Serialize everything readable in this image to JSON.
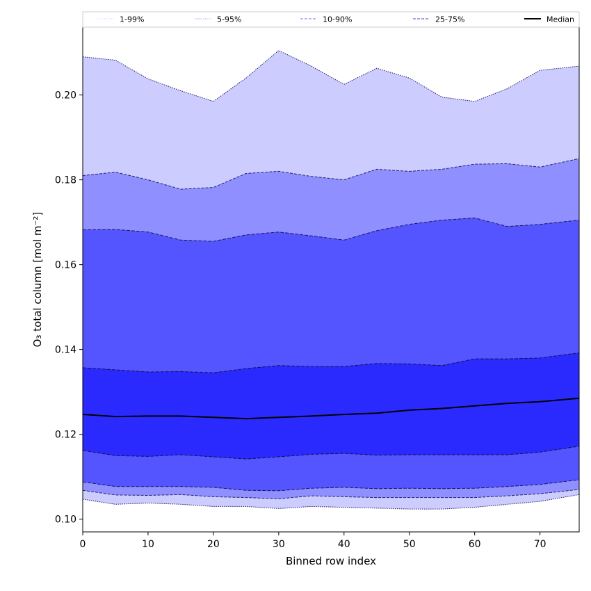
{
  "chart_data": {
    "type": "area",
    "title": "",
    "xlabel": "Binned row index",
    "ylabel": "O₃ total column [mol m⁻²]",
    "xlim": [
      0,
      76
    ],
    "ylim": [
      0.097,
      0.216
    ],
    "x_ticks": [
      0,
      10,
      20,
      30,
      40,
      50,
      60,
      70
    ],
    "y_ticks": [
      0.1,
      0.12,
      0.14,
      0.16,
      0.18,
      0.2
    ],
    "y_tick_labels": [
      "0.10",
      "0.12",
      "0.14",
      "0.16",
      "0.18",
      "0.20"
    ],
    "grid": false,
    "legend_position": "top",
    "legend": [
      {
        "label": "1-99%",
        "color": "#ccccff",
        "style": "dotted"
      },
      {
        "label": "5-95%",
        "color": "#8f8fff",
        "style": "dotted"
      },
      {
        "label": "10-90%",
        "color": "#6b6bff",
        "style": "dashed"
      },
      {
        "label": "25-75%",
        "color": "#3f3fe0",
        "style": "dashed"
      },
      {
        "label": "Median",
        "color": "#000000",
        "style": "solid"
      }
    ],
    "x": [
      0,
      5,
      10,
      15,
      20,
      25,
      30,
      35,
      40,
      45,
      50,
      55,
      60,
      65,
      70,
      76
    ],
    "bands": [
      {
        "name": "1-99%",
        "color": "#ccccff",
        "stroke": "#1a1a66",
        "dash": "1.5,1.5",
        "lower": [
          0.1047,
          0.1035,
          0.1038,
          0.1035,
          0.103,
          0.103,
          0.1025,
          0.103,
          0.1028,
          0.1026,
          0.1024,
          0.1024,
          0.1028,
          0.1035,
          0.1042,
          0.1058
        ],
        "upper": [
          0.209,
          0.2082,
          0.2038,
          0.201,
          0.1985,
          0.204,
          0.2105,
          0.2068,
          0.2025,
          0.2063,
          0.204,
          0.1995,
          0.1985,
          0.2015,
          0.2058,
          0.2068
        ]
      },
      {
        "name": "5-95%",
        "color": "#8f8fff",
        "stroke": "#20206e",
        "dash": "4,2",
        "lower": [
          0.1068,
          0.1057,
          0.1056,
          0.1058,
          0.1053,
          0.1051,
          0.1048,
          0.1055,
          0.1053,
          0.1051,
          0.1051,
          0.1051,
          0.1051,
          0.1055,
          0.106,
          0.107
        ],
        "upper": [
          0.181,
          0.1818,
          0.18,
          0.1778,
          0.1782,
          0.1815,
          0.182,
          0.1808,
          0.18,
          0.1825,
          0.182,
          0.1825,
          0.1837,
          0.1838,
          0.183,
          0.185
        ]
      },
      {
        "name": "10-90%",
        "color": "#5555ff",
        "stroke": "#151560",
        "dash": "5,2",
        "lower": [
          0.1088,
          0.1077,
          0.1077,
          0.1077,
          0.1075,
          0.1068,
          0.1067,
          0.1073,
          0.1075,
          0.1072,
          0.1073,
          0.1072,
          0.1073,
          0.1077,
          0.1082,
          0.1093
        ],
        "upper": [
          0.1682,
          0.1683,
          0.1677,
          0.1658,
          0.1655,
          0.167,
          0.1677,
          0.1668,
          0.1658,
          0.168,
          0.1695,
          0.1705,
          0.171,
          0.169,
          0.1695,
          0.1705
        ]
      },
      {
        "name": "25-75%",
        "color": "#2a2aff",
        "stroke": "#101050",
        "dash": "5,2",
        "lower": [
          0.1162,
          0.115,
          0.1148,
          0.1152,
          0.1147,
          0.1142,
          0.1147,
          0.1153,
          0.1155,
          0.1151,
          0.1152,
          0.1152,
          0.1152,
          0.1152,
          0.1158,
          0.1172
        ],
        "upper": [
          0.1357,
          0.1352,
          0.1347,
          0.1348,
          0.1345,
          0.1355,
          0.1362,
          0.136,
          0.136,
          0.1367,
          0.1366,
          0.1362,
          0.1378,
          0.1378,
          0.138,
          0.1392
        ]
      }
    ],
    "series": [
      {
        "name": "Median",
        "color": "#000000",
        "values": [
          0.1247,
          0.1242,
          0.1243,
          0.1243,
          0.124,
          0.1237,
          0.124,
          0.1243,
          0.1247,
          0.125,
          0.1257,
          0.1261,
          0.1267,
          0.1273,
          0.1277,
          0.1285
        ]
      }
    ]
  }
}
